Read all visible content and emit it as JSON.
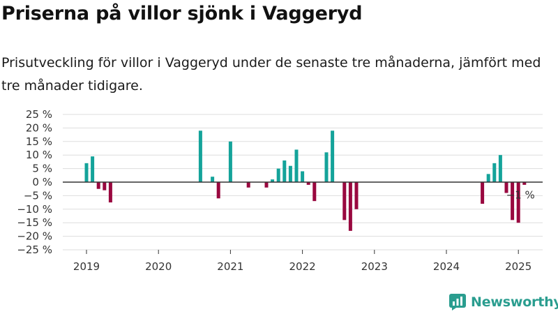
{
  "title": "Priserna på villor sjönk i Vaggeryd",
  "subtitle": "Prisutveckling för villor i Vaggeryd under de senaste tre månaderna, jämfört med tre månader tidigare.",
  "brand": {
    "name": "Newsworthy",
    "icon": "newsworthy-logo-icon",
    "color": "#2a9d8f"
  },
  "chart_data": {
    "type": "bar",
    "ylim": [
      -25,
      25
    ],
    "yticks": [
      25,
      20,
      15,
      10,
      5,
      0,
      -5,
      -10,
      -15,
      -20,
      -25
    ],
    "ytick_labels": [
      "25 %",
      "20 %",
      "15 %",
      "10 %",
      "5 %",
      "0 %",
      "−5 %",
      "−10 %",
      "−15 %",
      "−20 %",
      "−25 %"
    ],
    "xticks": [
      "2019",
      "2020",
      "2021",
      "2022",
      "2023",
      "2024",
      "2025"
    ],
    "colors": {
      "positive": "#14a39a",
      "negative": "#99083f"
    },
    "grid": true,
    "annotation": {
      "text": "−1 %",
      "date": "2024-12"
    },
    "series": [
      {
        "values": [
          {
            "date": "2019-01",
            "value": 7
          },
          {
            "date": "2019-02",
            "value": 9.5
          },
          {
            "date": "2019-03",
            "value": -2.5
          },
          {
            "date": "2019-04",
            "value": -3
          },
          {
            "date": "2019-05",
            "value": -7.5
          },
          {
            "date": "2020-08",
            "value": 19
          },
          {
            "date": "2020-10",
            "value": 2
          },
          {
            "date": "2020-11",
            "value": -6
          },
          {
            "date": "2021-01",
            "value": 15
          },
          {
            "date": "2021-04",
            "value": -2
          },
          {
            "date": "2021-07",
            "value": -2
          },
          {
            "date": "2021-08",
            "value": 1
          },
          {
            "date": "2021-09",
            "value": 5
          },
          {
            "date": "2021-10",
            "value": 8
          },
          {
            "date": "2021-11",
            "value": 6
          },
          {
            "date": "2021-12",
            "value": 12
          },
          {
            "date": "2022-01",
            "value": 4
          },
          {
            "date": "2022-02",
            "value": -1
          },
          {
            "date": "2022-03",
            "value": -7
          },
          {
            "date": "2022-05",
            "value": 11
          },
          {
            "date": "2022-06",
            "value": 19
          },
          {
            "date": "2022-08",
            "value": -14
          },
          {
            "date": "2022-09",
            "value": -18
          },
          {
            "date": "2022-10",
            "value": -10
          },
          {
            "date": "2024-07",
            "value": -8
          },
          {
            "date": "2024-08",
            "value": 3
          },
          {
            "date": "2024-09",
            "value": 7
          },
          {
            "date": "2024-10",
            "value": 10
          },
          {
            "date": "2024-11",
            "value": -4
          },
          {
            "date": "2024-12",
            "value": -14
          },
          {
            "date": "2025-01",
            "value": -15
          },
          {
            "date": "2025-02",
            "value": -1
          }
        ]
      }
    ]
  }
}
